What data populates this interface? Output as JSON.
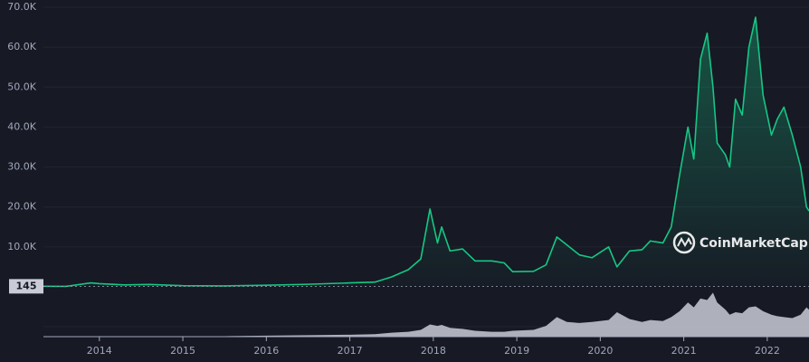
{
  "chart_data": {
    "type": "line",
    "x": [
      2013.33,
      2013.6,
      2013.9,
      2014.0,
      2014.3,
      2014.6,
      2015.0,
      2015.5,
      2016.0,
      2016.5,
      2017.0,
      2017.3,
      2017.5,
      2017.7,
      2017.85,
      2017.96,
      2018.05,
      2018.1,
      2018.2,
      2018.35,
      2018.5,
      2018.7,
      2018.85,
      2018.95,
      2019.2,
      2019.35,
      2019.48,
      2019.6,
      2019.75,
      2019.9,
      2020.1,
      2020.2,
      2020.35,
      2020.5,
      2020.6,
      2020.75,
      2020.85,
      2020.95,
      2021.05,
      2021.12,
      2021.2,
      2021.28,
      2021.35,
      2021.4,
      2021.5,
      2021.55,
      2021.62,
      2021.7,
      2021.78,
      2021.86,
      2021.95,
      2022.05,
      2022.12,
      2022.2,
      2022.3,
      2022.4,
      2022.47,
      2022.5
    ],
    "series": [
      {
        "color": "#16c784",
        "values": [
          145,
          120,
          1000,
          800,
          500,
          600,
          300,
          250,
          400,
          650,
          1000,
          1200,
          2500,
          4300,
          7000,
          19500,
          11000,
          15000,
          9000,
          9500,
          6500,
          6500,
          6000,
          3800,
          3900,
          5500,
          12500,
          10500,
          8000,
          7300,
          10000,
          5000,
          9000,
          9300,
          11500,
          11000,
          15000,
          28000,
          40000,
          32000,
          57000,
          63500,
          50000,
          36000,
          33000,
          30000,
          47000,
          43000,
          60000,
          67500,
          48000,
          38000,
          42000,
          45000,
          38000,
          30000,
          20000,
          19000
        ]
      }
    ],
    "volume": [
      0,
      0,
      1,
      1,
      1,
      1,
      1,
      1,
      2,
      3,
      4,
      5,
      8,
      10,
      14,
      25,
      22,
      24,
      18,
      16,
      12,
      10,
      10,
      12,
      14,
      22,
      40,
      30,
      28,
      30,
      34,
      50,
      36,
      30,
      34,
      32,
      40,
      52,
      70,
      60,
      78,
      75,
      90,
      70,
      55,
      45,
      50,
      48,
      60,
      62,
      52,
      45,
      42,
      40,
      38,
      45,
      60,
      55
    ],
    "vlim": [
      0,
      100
    ],
    "xlim": [
      2013.33,
      2022.5
    ],
    "xticks": [
      2014,
      2015,
      2016,
      2017,
      2018,
      2019,
      2020,
      2021,
      2022
    ],
    "ylim": [
      0,
      70000
    ],
    "yticks": [
      {
        "value": 10000,
        "label": "10.0K"
      },
      {
        "value": 20000,
        "label": "20.0K"
      },
      {
        "value": 30000,
        "label": "30.0K"
      },
      {
        "value": 40000,
        "label": "40.0K"
      },
      {
        "value": 50000,
        "label": "50.0K"
      },
      {
        "value": 60000,
        "label": "60.0K"
      },
      {
        "value": 70000,
        "label": "70.0K"
      }
    ],
    "marker": 145,
    "grid": true,
    "watermark": "CoinMarketCap"
  }
}
